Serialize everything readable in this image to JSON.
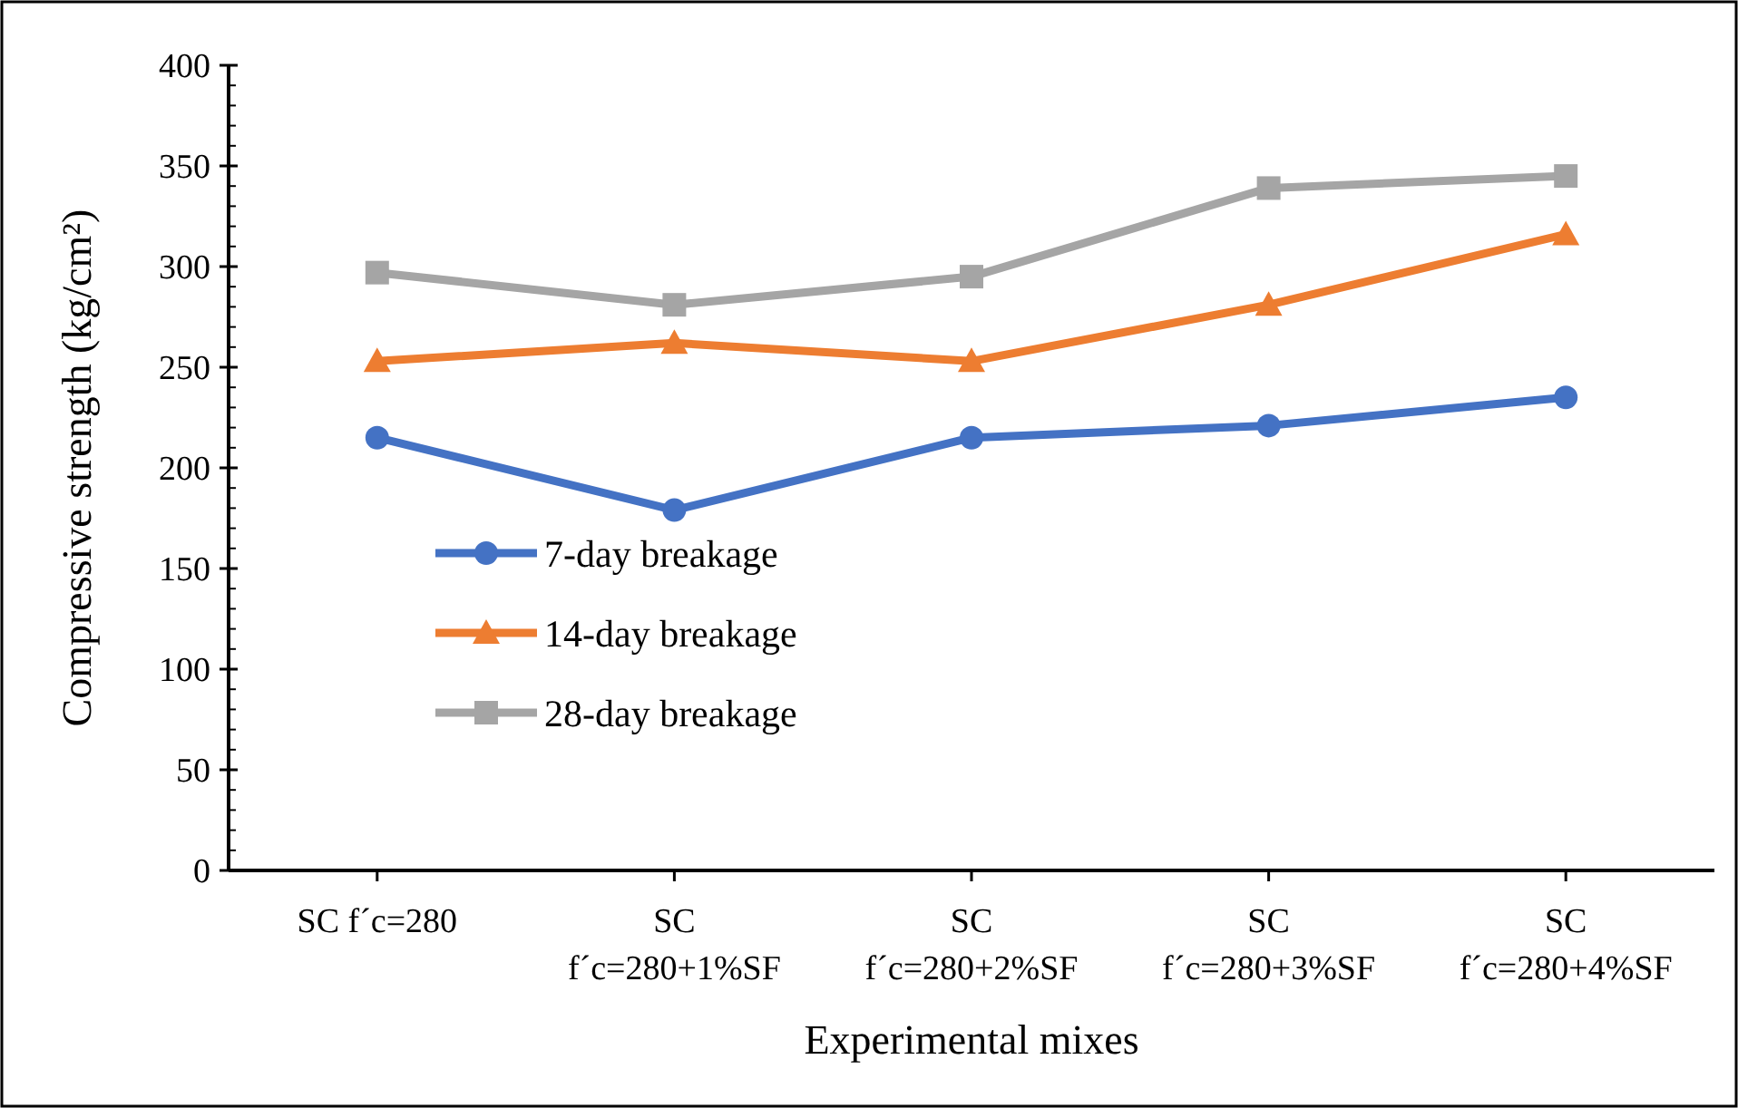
{
  "chart_data": {
    "type": "line",
    "xlabel": "Experimental mixes",
    "ylabel": "Compressive strength (kg/cm²)",
    "categories": [
      "SC f´c=280",
      "SC\nf´c=280+1%SF",
      "SC\nf´c=280+2%SF",
      "SC\nf´c=280+3%SF",
      "SC\nf´c=280+4%SF"
    ],
    "series": [
      {
        "name": "7-day breakage",
        "color": "#4472c4",
        "marker": "circle",
        "values": [
          215,
          179,
          215,
          221,
          235
        ]
      },
      {
        "name": "14-day breakage",
        "color": "#ed7d31",
        "marker": "triangle",
        "values": [
          253,
          262,
          253,
          281,
          316
        ]
      },
      {
        "name": "28-day breakage",
        "color": "#a5a5a5",
        "marker": "square",
        "values": [
          297,
          281,
          295,
          339,
          345
        ]
      }
    ],
    "ylim": [
      0,
      400
    ],
    "yticks": [
      0,
      50,
      100,
      150,
      200,
      250,
      300,
      350,
      400
    ],
    "grid": false,
    "legend": "left",
    "line_style": "solid"
  }
}
